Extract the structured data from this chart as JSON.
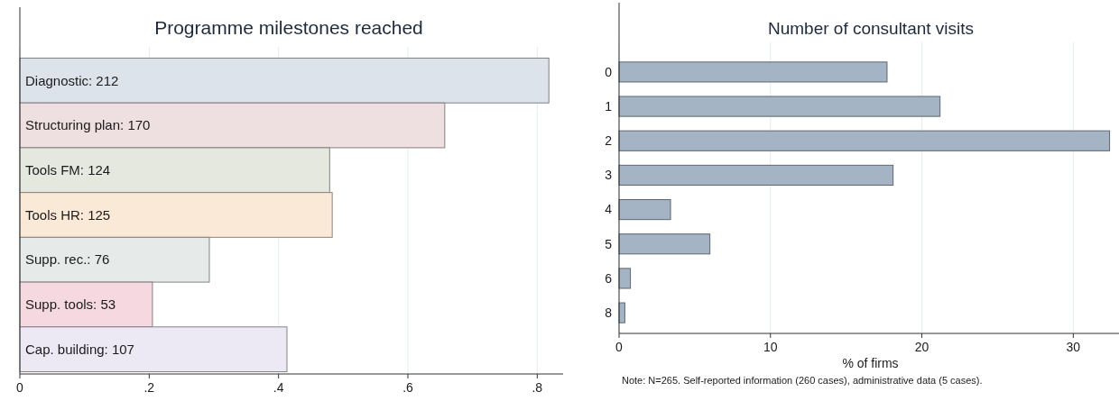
{
  "chart_data": [
    {
      "type": "bar",
      "orientation": "horizontal",
      "title": "Programme milestones reached",
      "categories": [
        "Diagnostic: 212",
        "Structuring plan: 170",
        "Tools FM: 124",
        "Tools HR: 125",
        "Supp. rec.: 76",
        "Supp. tools: 53",
        "Cap. building: 107"
      ],
      "values": [
        0.818,
        0.657,
        0.479,
        0.483,
        0.293,
        0.205,
        0.413
      ],
      "colors": [
        "#dde3eb",
        "#eedfe0",
        "#e5e8df",
        "#fbe9d8",
        "#e6eae8",
        "#f5d8e0",
        "#ece9f5"
      ],
      "xlim": [
        0,
        0.84
      ],
      "xticks": [
        {
          "value": 0,
          "label": "0"
        },
        {
          "value": 0.2,
          "label": ".2"
        },
        {
          "value": 0.4,
          "label": ".4"
        },
        {
          "value": 0.6,
          "label": ".6"
        },
        {
          "value": 0.8,
          "label": ".8"
        }
      ],
      "grid": "x"
    },
    {
      "type": "bar",
      "orientation": "horizontal",
      "title": "Number of consultant visits",
      "categories": [
        "0",
        "1",
        "2",
        "3",
        "4",
        "5",
        "6",
        "8"
      ],
      "values": [
        17.7,
        21.2,
        32.4,
        18.1,
        3.4,
        6.0,
        0.75,
        0.38
      ],
      "color": "#a4b4c4",
      "xlim": [
        0,
        33.2
      ],
      "xticks": [
        0,
        10,
        20,
        30
      ],
      "xlabel": "% of firms",
      "annotations": [
        "Note: N=265. Self-reported information (260 cases), administrative data (5 cases)."
      ],
      "grid": "x"
    }
  ]
}
